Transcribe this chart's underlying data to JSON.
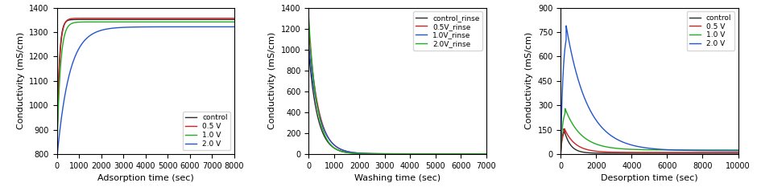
{
  "fig_width": 9.4,
  "fig_height": 2.43,
  "dpi": 100,
  "plot1": {
    "xlabel": "Adsorption time (sec)",
    "ylabel": "Conductivity (mS/cm)",
    "xlim": [
      0,
      8000
    ],
    "ylim": [
      800,
      1400
    ],
    "yticks": [
      800,
      900,
      1000,
      1100,
      1200,
      1300,
      1400
    ],
    "xticks": [
      0,
      1000,
      2000,
      3000,
      4000,
      5000,
      6000,
      7000,
      8000
    ],
    "legend_labels": [
      "control",
      "0.5 V",
      "1.0 V",
      "2.0 V"
    ],
    "colors": [
      "#2b2b2b",
      "#cc2222",
      "#22aa22",
      "#2255cc"
    ],
    "curves": [
      {
        "y_start": 780,
        "ymax": 1352,
        "tau": 100
      },
      {
        "y_start": 780,
        "ymax": 1357,
        "tau": 110
      },
      {
        "y_start": 778,
        "ymax": 1342,
        "tau": 150
      },
      {
        "y_start": 775,
        "ymax": 1322,
        "tau": 550
      }
    ]
  },
  "plot2": {
    "xlabel": "Washing time (sec)",
    "ylabel": "Conductivity (mS/cm)",
    "xlim": [
      0,
      7000
    ],
    "ylim": [
      0,
      1400
    ],
    "yticks": [
      0,
      200,
      400,
      600,
      800,
      1000,
      1200,
      1400
    ],
    "xticks": [
      0,
      1000,
      2000,
      3000,
      4000,
      5000,
      6000,
      7000
    ],
    "legend_labels": [
      "control_rinse",
      "0.5V_rinse",
      "1.0V_rinse",
      "2.0V_rinse"
    ],
    "colors": [
      "#2b2b2b",
      "#cc2222",
      "#2255cc",
      "#22aa22"
    ],
    "curves": [
      {
        "y0": 980,
        "tau": 350,
        "floor": 2
      },
      {
        "y0": 1190,
        "tau": 380,
        "floor": 2
      },
      {
        "y0": 1050,
        "tau": 400,
        "floor": 2
      },
      {
        "y0": 1310,
        "tau": 320,
        "floor": 2
      }
    ]
  },
  "plot3": {
    "xlabel": "Desorption time (sec)",
    "ylabel": "Conductivity (mS/cm)",
    "xlim": [
      0,
      10000
    ],
    "ylim": [
      0,
      900
    ],
    "yticks": [
      0,
      150,
      300,
      450,
      600,
      750,
      900
    ],
    "xticks": [
      0,
      2000,
      4000,
      6000,
      8000,
      10000
    ],
    "legend_labels": [
      "control",
      "0.5 V",
      "1.0 V",
      "2.0 V"
    ],
    "colors": [
      "#2b2b2b",
      "#cc2222",
      "#22aa22",
      "#2255cc"
    ],
    "curves": [
      {
        "peak": 155,
        "peak_t": 180,
        "tau_rise": 80,
        "tau_fall": 350,
        "floor": 5
      },
      {
        "peak": 155,
        "peak_t": 220,
        "tau_rise": 100,
        "tau_fall": 600,
        "floor": 10
      },
      {
        "peak": 280,
        "peak_t": 250,
        "tau_rise": 110,
        "tau_fall": 900,
        "floor": 25
      },
      {
        "peak": 790,
        "peak_t": 310,
        "tau_rise": 140,
        "tau_fall": 1200,
        "floor": 20
      }
    ]
  }
}
